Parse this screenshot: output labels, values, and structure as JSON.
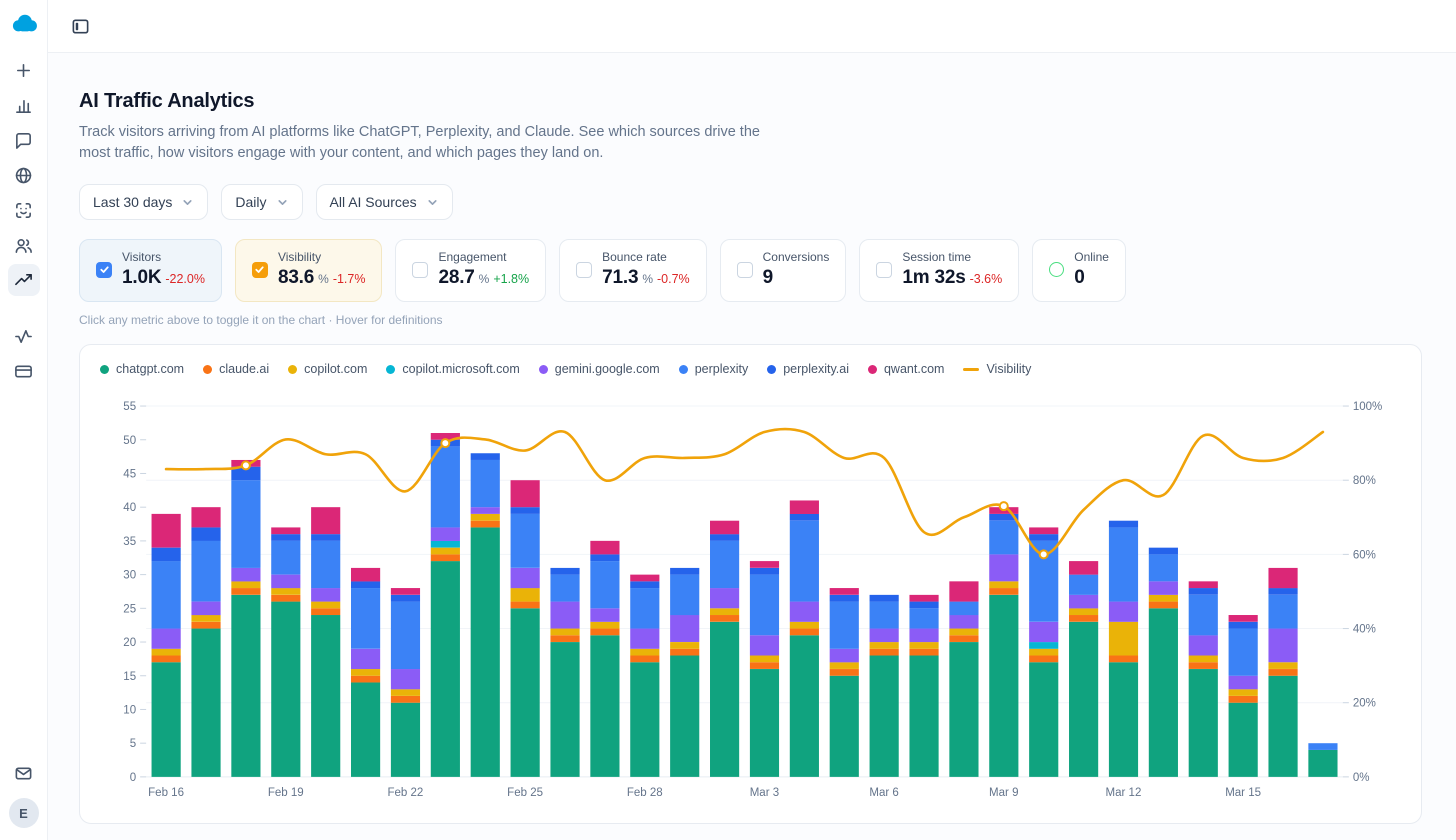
{
  "page": {
    "title": "AI Traffic Analytics",
    "subtitle": "Track visitors arriving from AI platforms like ChatGPT, Perplexity, and Claude. See which sources drive the most traffic, how visitors engage with your content, and which pages they land on.",
    "hint": "Click any metric above to toggle it on the chart · Hover for definitions"
  },
  "avatar": "E",
  "filters": [
    {
      "id": "date-range",
      "value": "Last 30 days"
    },
    {
      "id": "granularity",
      "value": "Daily"
    },
    {
      "id": "sources",
      "value": "All AI Sources"
    }
  ],
  "metrics": [
    {
      "id": "visitors",
      "label": "Visitors",
      "value": "1.0K",
      "unit": "",
      "delta": "-22.0%",
      "delta_dir": "down",
      "checked": true,
      "accent": "#3b82f6",
      "bg": "#eff5fa",
      "border": "#d9e6f2"
    },
    {
      "id": "visibility",
      "label": "Visibility",
      "value": "83.6",
      "unit": "%",
      "delta": "-1.7%",
      "delta_dir": "down",
      "checked": true,
      "accent": "#f59e0b",
      "bg": "#fdf8ea",
      "border": "#f3e7c3"
    },
    {
      "id": "engagement",
      "label": "Engagement",
      "value": "28.7",
      "unit": "%",
      "delta": "+1.8%",
      "delta_dir": "up",
      "checked": false
    },
    {
      "id": "bounce-rate",
      "label": "Bounce rate",
      "value": "71.3",
      "unit": "%",
      "delta": "-0.7%",
      "delta_dir": "down",
      "checked": false
    },
    {
      "id": "conversions",
      "label": "Conversions",
      "value": "9",
      "unit": "",
      "delta": "",
      "checked": false
    },
    {
      "id": "session-time",
      "label": "Session time",
      "value": "1m 32s",
      "unit": "",
      "delta": "-3.6%",
      "delta_dir": "down",
      "checked": false
    },
    {
      "id": "online",
      "label": "Online",
      "value": "0",
      "unit": "",
      "delta": "",
      "checked": false,
      "type": "online",
      "accent": "#4ade80"
    }
  ],
  "chart_data": {
    "type": "bar",
    "subtype": "stacked-bars-with-line",
    "categories": [
      "Feb 16",
      "Feb 17",
      "Feb 18",
      "Feb 19",
      "Feb 20",
      "Feb 21",
      "Feb 22",
      "Feb 23",
      "Feb 24",
      "Feb 25",
      "Feb 26",
      "Feb 27",
      "Feb 28",
      "Mar 1",
      "Mar 2",
      "Mar 3",
      "Mar 4",
      "Mar 5",
      "Mar 6",
      "Mar 7",
      "Mar 8",
      "Mar 9",
      "Mar 10",
      "Mar 11",
      "Mar 12",
      "Mar 13",
      "Mar 14",
      "Mar 15",
      "Mar 16",
      "Mar 17"
    ],
    "x_label_every": 3,
    "series": [
      {
        "name": "chatgpt.com",
        "color": "#10a37f",
        "values": [
          17,
          22,
          27,
          26,
          24,
          14,
          11,
          32,
          37,
          25,
          20,
          21,
          17,
          18,
          23,
          16,
          21,
          15,
          18,
          18,
          20,
          27,
          17,
          23,
          17,
          25,
          16,
          11,
          15,
          4
        ]
      },
      {
        "name": "claude.ai",
        "color": "#f97316",
        "values": [
          1,
          1,
          1,
          1,
          1,
          1,
          1,
          1,
          1,
          1,
          1,
          1,
          1,
          1,
          1,
          1,
          1,
          1,
          1,
          1,
          1,
          1,
          1,
          1,
          1,
          1,
          1,
          1,
          1,
          0
        ]
      },
      {
        "name": "copilot.com",
        "color": "#eab308",
        "values": [
          1,
          1,
          1,
          1,
          1,
          1,
          1,
          1,
          1,
          2,
          1,
          1,
          1,
          1,
          1,
          1,
          1,
          1,
          1,
          1,
          1,
          1,
          1,
          1,
          5,
          1,
          1,
          1,
          1,
          0
        ]
      },
      {
        "name": "copilot.microsoft.com",
        "color": "#06b6d4",
        "values": [
          0,
          0,
          0,
          0,
          0,
          0,
          0,
          1,
          0,
          0,
          0,
          0,
          0,
          0,
          0,
          0,
          0,
          0,
          0,
          0,
          0,
          0,
          1,
          0,
          0,
          0,
          0,
          0,
          0,
          0
        ]
      },
      {
        "name": "gemini.google.com",
        "color": "#8b5cf6",
        "values": [
          3,
          2,
          2,
          2,
          2,
          3,
          3,
          2,
          1,
          3,
          4,
          2,
          3,
          4,
          3,
          3,
          3,
          2,
          2,
          2,
          2,
          4,
          3,
          2,
          3,
          2,
          3,
          2,
          5,
          0
        ]
      },
      {
        "name": "perplexity",
        "color": "#3b82f6",
        "values": [
          10,
          9,
          13,
          5,
          7,
          9,
          10,
          12,
          7,
          8,
          4,
          7,
          6,
          6,
          7,
          9,
          12,
          7,
          4,
          3,
          2,
          5,
          12,
          3,
          11,
          4,
          6,
          7,
          5,
          1
        ]
      },
      {
        "name": "perplexity.ai",
        "color": "#2563eb",
        "values": [
          2,
          2,
          2,
          1,
          1,
          1,
          1,
          1,
          1,
          1,
          1,
          1,
          1,
          1,
          1,
          1,
          1,
          1,
          1,
          1,
          0,
          1,
          1,
          0,
          1,
          1,
          1,
          1,
          1,
          0
        ]
      },
      {
        "name": "qwant.com",
        "color": "#db2777",
        "values": [
          5,
          3,
          1,
          1,
          4,
          2,
          1,
          1,
          0,
          4,
          0,
          2,
          1,
          0,
          2,
          1,
          2,
          1,
          0,
          1,
          3,
          1,
          1,
          2,
          0,
          0,
          1,
          1,
          3,
          0
        ]
      }
    ],
    "line": {
      "name": "Visibility",
      "color": "#f0a30a",
      "axis": "right",
      "values": [
        83,
        83,
        84,
        91,
        87,
        87,
        77,
        90,
        91,
        88,
        93,
        80,
        86,
        86,
        87,
        93,
        93,
        86,
        86,
        66,
        70,
        73,
        60,
        72,
        80,
        76,
        92,
        86,
        86,
        93
      ],
      "marker_indices": [
        2,
        7,
        21,
        22
      ]
    },
    "left_axis": {
      "min": 0,
      "max": 55,
      "ticks": [
        0,
        5,
        10,
        15,
        20,
        25,
        30,
        35,
        40,
        45,
        50,
        55
      ]
    },
    "right_axis": {
      "min": 0,
      "max": 100,
      "ticks": [
        0,
        20,
        40,
        60,
        80,
        100
      ],
      "suffix": "%"
    },
    "grid": true,
    "legend_position": "top"
  }
}
